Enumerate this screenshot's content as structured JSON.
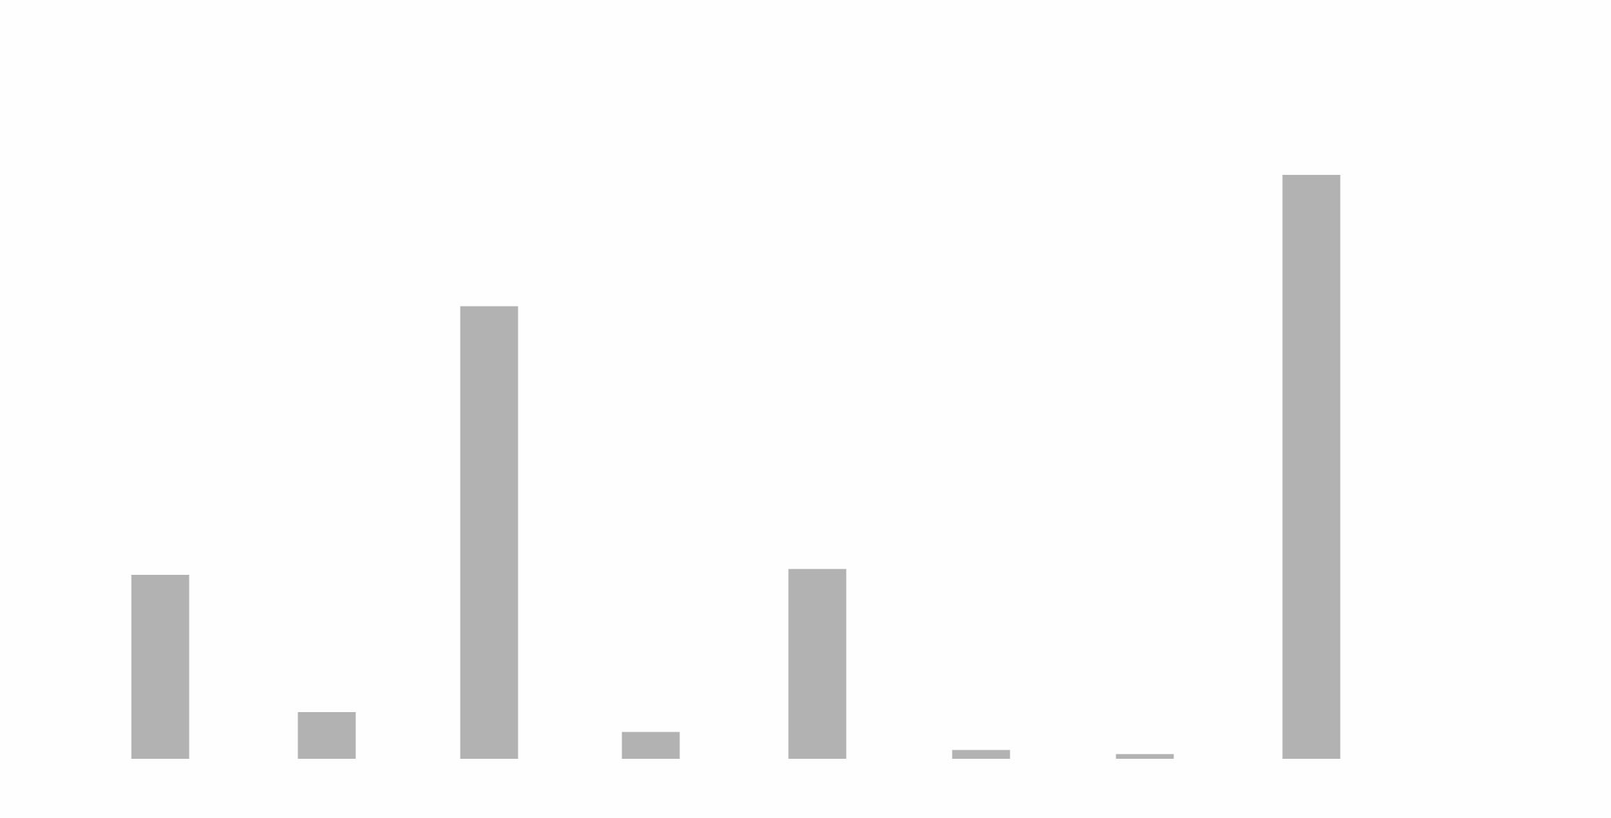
{
  "chart_data": {
    "type": "bar",
    "title": "",
    "xlabel": "",
    "ylabel": "",
    "categories": [
      "",
      "",
      "",
      "",
      "",
      "",
      "",
      ""
    ],
    "values": [
      31.5,
      8.0,
      77.5,
      4.6,
      32.5,
      1.5,
      0.8,
      100
    ],
    "ylim": [
      0,
      100
    ],
    "grid": false,
    "legend": "none",
    "bar_color": "#b2b2b2",
    "background_color": "#fefefe"
  }
}
